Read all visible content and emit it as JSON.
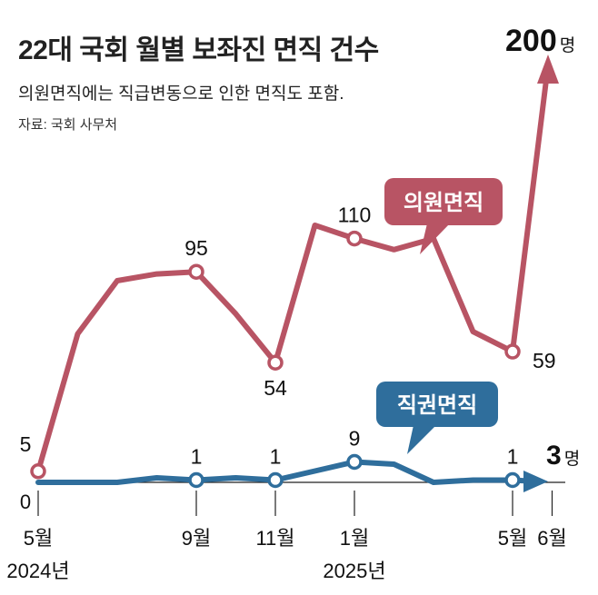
{
  "title": "22대 국회 월별 보좌진 면직 건수",
  "subtitle": "의원면직에는 직급변동으로 인한 면직도 포함.",
  "source": "자료: 국회 사무처",
  "colors": {
    "red": "#b85464",
    "blue": "#2f6e9c",
    "axis": "#222222"
  },
  "chart_data": {
    "type": "line",
    "title": "22대 국회 월별 보좌진 면직 건수",
    "x": [
      "2024-05",
      "2024-06",
      "2024-07",
      "2024-08",
      "2024-09",
      "2024-10",
      "2024-11",
      "2024-12",
      "2025-01",
      "2025-02",
      "2025-03",
      "2025-04",
      "2025-05",
      "2025-06"
    ],
    "x_tick_labels": [
      {
        "index": 0,
        "label": "5월"
      },
      {
        "index": 4,
        "label": "9월"
      },
      {
        "index": 6,
        "label": "11월"
      },
      {
        "index": 8,
        "label": "1월"
      },
      {
        "index": 12,
        "label": "5월"
      },
      {
        "index": 13,
        "label": "6월"
      }
    ],
    "year_labels": [
      {
        "index": 0,
        "label": "2024년"
      },
      {
        "index": 8,
        "label": "2025년"
      }
    ],
    "series": [
      {
        "name": "의원면직",
        "values": [
          5,
          67,
          91,
          94,
          95,
          76,
          54,
          116,
          110,
          105,
          110,
          68,
          59,
          200
        ],
        "labels": [
          {
            "index": 0,
            "text": "5",
            "pos": "above-left"
          },
          {
            "index": 4,
            "text": "95",
            "pos": "above"
          },
          {
            "index": 6,
            "text": "54",
            "pos": "below"
          },
          {
            "index": 8,
            "text": "110",
            "pos": "above"
          },
          {
            "index": 12,
            "text": "59",
            "pos": "right"
          }
        ],
        "marked_indices": [
          0,
          4,
          6,
          8,
          12
        ],
        "end_label": {
          "value": "200",
          "unit": "명"
        }
      },
      {
        "name": "직권면직",
        "values": [
          0,
          0,
          0,
          2,
          1,
          2,
          1,
          5,
          9,
          8,
          0,
          1,
          1,
          3
        ],
        "labels": [
          {
            "index": 4,
            "text": "1",
            "pos": "above"
          },
          {
            "index": 6,
            "text": "1",
            "pos": "above"
          },
          {
            "index": 8,
            "text": "9",
            "pos": "above"
          },
          {
            "index": 12,
            "text": "1",
            "pos": "above"
          }
        ],
        "marked_indices": [
          4,
          6,
          8,
          12
        ],
        "end_label": {
          "value": "3",
          "unit": "명"
        }
      }
    ],
    "zero_label": "0",
    "callouts": {
      "red": "의원면직",
      "blue": "직권면직"
    },
    "ylim": [
      0,
      200
    ]
  }
}
